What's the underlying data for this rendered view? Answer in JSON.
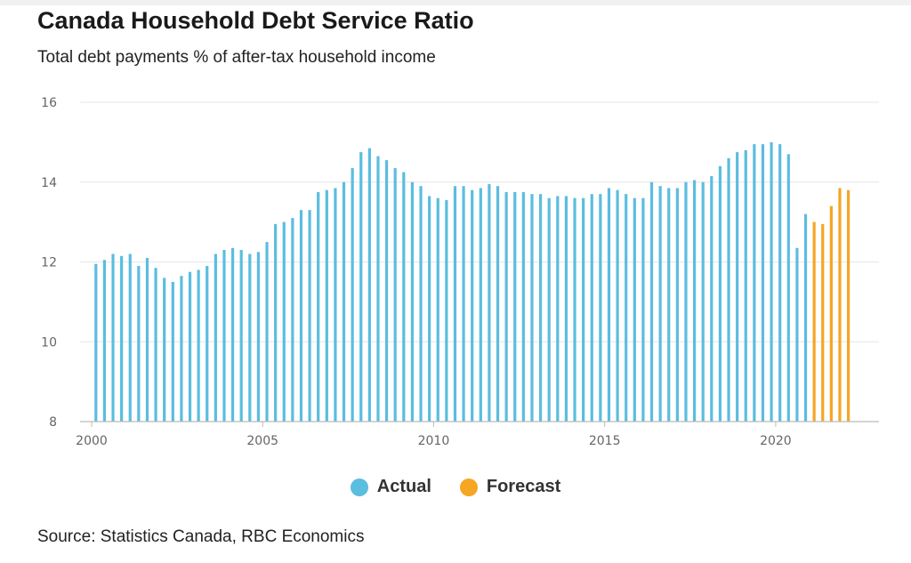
{
  "header": {
    "title": "Canada Household Debt Service Ratio",
    "subtitle": "Total debt payments % of after-tax household income"
  },
  "source": "Source: Statistics Canada, RBC Economics",
  "colors": {
    "actual": "#5bbde0",
    "forecast": "#f5a623",
    "grid": "#e6e6e6",
    "axis": "#bbbbbb"
  },
  "chart_data": {
    "type": "bar",
    "title": "Canada Household Debt Service Ratio",
    "subtitle": "Total debt payments % of after-tax household income",
    "xlabel": "",
    "ylabel": "",
    "ylim": [
      8,
      16
    ],
    "xlim": [
      2000,
      2022.5
    ],
    "yticks": [
      8,
      10,
      12,
      14,
      16
    ],
    "xticks": [
      "2000",
      "2005",
      "2010",
      "2015",
      "2020"
    ],
    "grid": true,
    "legend": "bottom-center",
    "series": [
      {
        "name": "Actual",
        "start": "2000-Q1",
        "frequency": "quarterly",
        "values": [
          11.95,
          12.05,
          12.2,
          12.15,
          12.2,
          11.9,
          12.1,
          11.85,
          11.6,
          11.5,
          11.65,
          11.75,
          11.8,
          11.9,
          12.2,
          12.3,
          12.35,
          12.3,
          12.2,
          12.25,
          12.5,
          12.95,
          13.0,
          13.1,
          13.3,
          13.3,
          13.75,
          13.8,
          13.85,
          14.0,
          14.35,
          14.75,
          14.85,
          14.65,
          14.55,
          14.35,
          14.25,
          14.0,
          13.9,
          13.65,
          13.6,
          13.55,
          13.9,
          13.9,
          13.8,
          13.85,
          13.95,
          13.9,
          13.75,
          13.75,
          13.75,
          13.7,
          13.7,
          13.6,
          13.65,
          13.65,
          13.6,
          13.6,
          13.7,
          13.7,
          13.85,
          13.8,
          13.7,
          13.6,
          13.6,
          14.0,
          13.9,
          13.85,
          13.85,
          14.0,
          14.05,
          14.0,
          14.15,
          14.4,
          14.6,
          14.75,
          14.8,
          14.95,
          14.95,
          15.0,
          14.95,
          14.7,
          12.35,
          13.2
        ]
      },
      {
        "name": "Forecast",
        "start": "2021-Q1",
        "frequency": "quarterly",
        "values": [
          13.0,
          12.95,
          13.4,
          13.85,
          13.8
        ]
      }
    ]
  },
  "legend": [
    {
      "label": "Actual",
      "color": "#5bbde0"
    },
    {
      "label": "Forecast",
      "color": "#f5a623"
    }
  ]
}
